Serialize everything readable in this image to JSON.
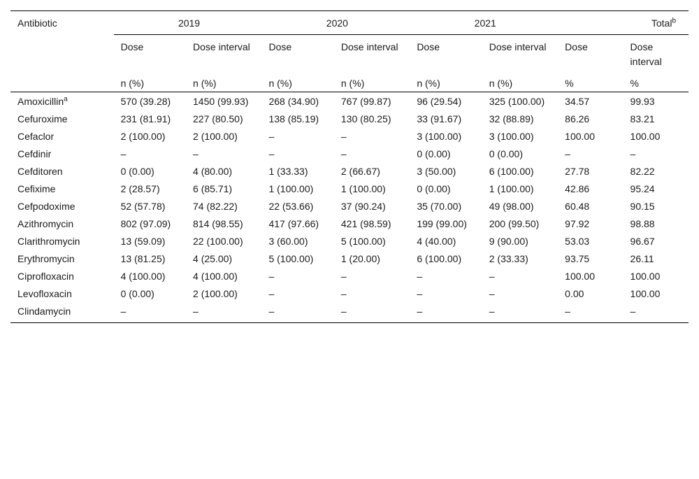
{
  "table": {
    "antibiotic_header": "Antibiotic",
    "years": [
      "2019",
      "2020",
      "2021"
    ],
    "total_label": "Total",
    "total_sup": "b",
    "dose_label": "Dose",
    "dose_interval_label": "Dose interval",
    "n_percent": "n (%)",
    "percent": "%",
    "rows": [
      {
        "name": "Amoxicillin",
        "sup": "a",
        "v": [
          "570 (39.28)",
          "1450 (99.93)",
          "268 (34.90)",
          "767 (99.87)",
          "96 (29.54)",
          "325 (100.00)",
          "34.57",
          "99.93"
        ]
      },
      {
        "name": "Cefuroxime",
        "sup": "",
        "v": [
          "231 (81.91)",
          "227 (80.50)",
          "138 (85.19)",
          "130 (80.25)",
          "33 (91.67)",
          "32 (88.89)",
          "86.26",
          "83.21"
        ]
      },
      {
        "name": "Cefaclor",
        "sup": "",
        "v": [
          "2 (100.00)",
          "2 (100.00)",
          "–",
          "–",
          "3 (100.00)",
          "3 (100.00)",
          "100.00",
          "100.00"
        ]
      },
      {
        "name": "Cefdinir",
        "sup": "",
        "v": [
          "–",
          "–",
          "–",
          "–",
          "0 (0.00)",
          "0 (0.00)",
          "–",
          "–"
        ]
      },
      {
        "name": "Cefditoren",
        "sup": "",
        "v": [
          "0 (0.00)",
          "4 (80.00)",
          "1 (33.33)",
          "2 (66.67)",
          "3 (50.00)",
          "6 (100.00)",
          "27.78",
          "82.22"
        ]
      },
      {
        "name": "Cefixime",
        "sup": "",
        "v": [
          "2 (28.57)",
          "6 (85.71)",
          "1 (100.00)",
          "1 (100.00)",
          "0 (0.00)",
          "1 (100.00)",
          "42.86",
          "95.24"
        ]
      },
      {
        "name": "Cefpodoxime",
        "sup": "",
        "v": [
          "52 (57.78)",
          "74 (82.22)",
          "22 (53.66)",
          "37 (90.24)",
          "35 (70.00)",
          "49 (98.00)",
          "60.48",
          "90.15"
        ]
      },
      {
        "name": "Azithromycin",
        "sup": "",
        "v": [
          "802 (97.09)",
          "814 (98.55)",
          "417 (97.66)",
          "421 (98.59)",
          "199 (99.00)",
          "200 (99.50)",
          "97.92",
          "98.88"
        ]
      },
      {
        "name": "Clarithromycin",
        "sup": "",
        "v": [
          "13 (59.09)",
          "22 (100.00)",
          "3 (60.00)",
          "5 (100.00)",
          "4 (40.00)",
          "9 (90.00)",
          "53.03",
          "96.67"
        ]
      },
      {
        "name": "Erythromycin",
        "sup": "",
        "v": [
          "13 (81.25)",
          "4 (25.00)",
          "5 (100.00)",
          "1 (20.00)",
          "6 (100.00)",
          "2 (33.33)",
          "93.75",
          "26.11"
        ]
      },
      {
        "name": "Ciprofloxacin",
        "sup": "",
        "v": [
          "4 (100.00)",
          "4 (100.00)",
          "–",
          "–",
          "–",
          "–",
          "100.00",
          "100.00"
        ]
      },
      {
        "name": "Levofloxacin",
        "sup": "",
        "v": [
          "0 (0.00)",
          "2 (100.00)",
          "–",
          "–",
          "–",
          "–",
          "0.00",
          "100.00"
        ]
      },
      {
        "name": "Clindamycin",
        "sup": "",
        "v": [
          "–",
          "–",
          "–",
          "–",
          "–",
          "–",
          "–",
          "–"
        ]
      }
    ]
  }
}
